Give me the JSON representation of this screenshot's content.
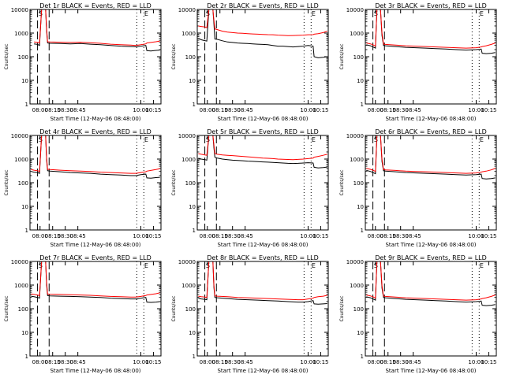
{
  "figure": {
    "background": "#ffffff",
    "axis_color": "#000000",
    "events_color": "#000000",
    "lld_color": "#ff0000"
  },
  "chart_data": [
    {
      "type": "line",
      "title": "Det 1r BLACK = Events, RED = LLD",
      "xlabel": "Start Time (12-May-06 08:48:00)",
      "ylabel": "Counts/sec",
      "xlim": [
        7.8,
        10.4
      ],
      "ylim": [
        1,
        10000
      ],
      "yscale": "log",
      "grid": false,
      "annotations": [
        "S",
        "E"
      ],
      "x_ticks": [
        "08:00",
        "08:15",
        "08:30",
        "08:45",
        "10:00",
        "10:15"
      ],
      "y_ticks": [
        "1",
        "10",
        "100",
        "1000",
        "10000"
      ],
      "x": [
        7.88,
        7.95,
        7.99,
        8.03,
        8.08,
        8.11,
        8.13,
        8.15,
        8.2,
        8.4,
        8.6,
        8.8,
        9.0,
        9.2,
        9.4,
        9.6,
        9.8,
        9.9,
        10.0,
        10.1,
        10.12,
        10.2,
        10.3,
        10.38
      ],
      "series": [
        {
          "name": "Events",
          "color": "#000000",
          "values": [
            350,
            330,
            300,
            10000,
            10000,
            10000,
            1200,
            380,
            370,
            360,
            350,
            360,
            340,
            320,
            300,
            280,
            270,
            265,
            280,
            300,
            180,
            175,
            185,
            190
          ]
        },
        {
          "name": "LLD",
          "color": "#ff0000",
          "values": [
            420,
            400,
            380,
            10000,
            10000,
            10000,
            1500,
            430,
            420,
            410,
            400,
            410,
            390,
            370,
            340,
            320,
            310,
            300,
            320,
            350,
            380,
            400,
            430,
            460
          ]
        }
      ]
    },
    {
      "type": "line",
      "title": "Det 2r BLACK = Events, RED = LLD",
      "xlabel": "Start Time (12-May-06 08:48:00)",
      "ylabel": "Counts/sec",
      "xlim": [
        7.8,
        10.4
      ],
      "ylim": [
        1,
        10000
      ],
      "yscale": "log",
      "grid": false,
      "annotations": [
        "S",
        "E"
      ],
      "x_ticks": [
        "08:00",
        "08:15",
        "08:30",
        "08:45",
        "10:00",
        "10:15"
      ],
      "y_ticks": [
        "1",
        "10",
        "100",
        "1000",
        "10000"
      ],
      "x": [
        7.82,
        7.88,
        7.95,
        7.99,
        8.03,
        8.08,
        8.11,
        8.13,
        8.15,
        8.2,
        8.3,
        8.4,
        8.5,
        8.6,
        8.7,
        8.8,
        8.9,
        9.0,
        9.1,
        9.2,
        9.3,
        9.4,
        9.5,
        9.6,
        9.7,
        9.8,
        9.9,
        10.0,
        10.1,
        10.12,
        10.2,
        10.3,
        10.38
      ],
      "series": [
        {
          "name": "Events",
          "color": "#000000",
          "values": [
            600,
            520,
            480,
            460,
            10000,
            10000,
            10000,
            2500,
            560,
            540,
            470,
            420,
            400,
            380,
            370,
            360,
            350,
            340,
            330,
            320,
            300,
            280,
            280,
            270,
            260,
            270,
            280,
            300,
            280,
            100,
            90,
            95,
            100
          ]
        },
        {
          "name": "LLD",
          "color": "#ff0000",
          "values": [
            2000,
            1900,
            1800,
            1700,
            10000,
            10000,
            10000,
            3500,
            1500,
            1400,
            1200,
            1100,
            1050,
            1000,
            980,
            950,
            920,
            900,
            880,
            860,
            850,
            820,
            800,
            780,
            790,
            800,
            820,
            850,
            860,
            900,
            950,
            1050,
            1200
          ]
        }
      ]
    },
    {
      "type": "line",
      "title": "Det 3r BLACK = Events, RED = LLD",
      "xlabel": "Start Time (12-May-06 08:48:00)",
      "ylabel": "Counts/sec",
      "xlim": [
        7.8,
        10.4
      ],
      "ylim": [
        1,
        10000
      ],
      "yscale": "log",
      "grid": false,
      "annotations": [
        "S",
        "E"
      ],
      "x_ticks": [
        "08:00",
        "08:15",
        "08:30",
        "08:45",
        "10:00",
        "10:15"
      ],
      "y_ticks": [
        "1",
        "10",
        "100",
        "1000",
        "10000"
      ],
      "x": [
        7.82,
        7.9,
        7.95,
        8.0,
        8.03,
        8.06,
        8.1,
        8.13,
        8.16,
        8.2,
        8.4,
        8.6,
        8.8,
        9.0,
        9.2,
        9.4,
        9.6,
        9.8,
        10.0,
        10.1,
        10.12,
        10.2,
        10.3,
        10.38
      ],
      "series": [
        {
          "name": "Events",
          "color": "#000000",
          "values": [
            320,
            290,
            260,
            230,
            10000,
            10000,
            10000,
            800,
            300,
            290,
            270,
            250,
            240,
            230,
            220,
            210,
            200,
            190,
            200,
            210,
            140,
            135,
            140,
            150
          ]
        },
        {
          "name": "LLD",
          "color": "#ff0000",
          "values": [
            380,
            350,
            320,
            280,
            10000,
            10000,
            10000,
            1000,
            340,
            330,
            310,
            290,
            280,
            270,
            260,
            250,
            240,
            230,
            240,
            260,
            270,
            290,
            330,
            380
          ]
        }
      ]
    },
    {
      "type": "line",
      "title": "Det 4r BLACK = Events, RED = LLD",
      "xlabel": "Start Time (12-May-06 08:48:00)",
      "ylabel": "Counts/sec",
      "xlim": [
        7.8,
        10.4
      ],
      "ylim": [
        1,
        10000
      ],
      "yscale": "log",
      "grid": false,
      "annotations": [
        "S",
        "E"
      ],
      "x_ticks": [
        "08:00",
        "08:15",
        "08:30",
        "08:45",
        "10:00",
        "10:15"
      ],
      "y_ticks": [
        "1",
        "10",
        "100",
        "1000",
        "10000"
      ],
      "x": [
        7.82,
        7.88,
        7.95,
        7.99,
        8.03,
        8.08,
        8.11,
        8.13,
        8.15,
        8.2,
        8.4,
        8.6,
        8.8,
        9.0,
        9.2,
        9.4,
        9.6,
        9.8,
        9.9,
        10.0,
        10.1,
        10.12,
        10.2,
        10.3,
        10.38
      ],
      "series": [
        {
          "name": "Events",
          "color": "#000000",
          "values": [
            300,
            280,
            270,
            250,
            10000,
            10000,
            10000,
            900,
            320,
            310,
            290,
            270,
            260,
            250,
            230,
            220,
            210,
            200,
            200,
            220,
            230,
            160,
            155,
            165,
            170
          ]
        },
        {
          "name": "LLD",
          "color": "#ff0000",
          "values": [
            360,
            340,
            320,
            300,
            10000,
            10000,
            10000,
            1100,
            370,
            360,
            340,
            320,
            310,
            300,
            280,
            270,
            260,
            250,
            250,
            270,
            290,
            310,
            330,
            360,
            390
          ]
        }
      ]
    },
    {
      "type": "line",
      "title": "Det 5r BLACK = Events, RED = LLD",
      "xlabel": "Start Time (12-May-06 08:48:00)",
      "ylabel": "Counts/sec",
      "xlim": [
        7.8,
        10.4
      ],
      "ylim": [
        1,
        10000
      ],
      "yscale": "log",
      "grid": false,
      "annotations": [
        "S",
        "E"
      ],
      "x_ticks": [
        "08:00",
        "08:15",
        "08:30",
        "08:45",
        "10:00",
        "10:15"
      ],
      "y_ticks": [
        "1",
        "10",
        "100",
        "1000",
        "10000"
      ],
      "x": [
        7.82,
        7.88,
        7.95,
        7.99,
        8.03,
        8.08,
        8.11,
        8.13,
        8.15,
        8.2,
        8.3,
        8.4,
        8.5,
        8.6,
        8.7,
        8.8,
        8.9,
        9.0,
        9.1,
        9.2,
        9.3,
        9.4,
        9.5,
        9.6,
        9.7,
        9.8,
        9.9,
        10.0,
        10.1,
        10.12,
        10.2,
        10.3,
        10.38
      ],
      "series": [
        {
          "name": "Events",
          "color": "#000000",
          "values": [
            1100,
            1000,
            950,
            900,
            10000,
            10000,
            10000,
            3000,
            1200,
            1100,
            1000,
            950,
            900,
            870,
            850,
            820,
            800,
            780,
            760,
            740,
            720,
            700,
            680,
            660,
            650,
            660,
            680,
            700,
            680,
            450,
            420,
            440,
            460
          ]
        },
        {
          "name": "LLD",
          "color": "#ff0000",
          "values": [
            1700,
            1600,
            1500,
            1450,
            10000,
            10000,
            10000,
            4000,
            1700,
            1600,
            1500,
            1450,
            1400,
            1350,
            1300,
            1250,
            1200,
            1150,
            1100,
            1080,
            1050,
            1000,
            980,
            960,
            950,
            970,
            1000,
            1050,
            1100,
            1200,
            1300,
            1450,
            1600
          ]
        }
      ]
    },
    {
      "type": "line",
      "title": "Det 6r BLACK = Events, RED = LLD",
      "xlabel": "Start Time (12-May-06 08:48:00)",
      "ylabel": "Counts/sec",
      "xlim": [
        7.8,
        10.4
      ],
      "ylim": [
        1,
        10000
      ],
      "yscale": "log",
      "grid": false,
      "annotations": [
        "S",
        "E"
      ],
      "x_ticks": [
        "08:00",
        "08:15",
        "08:30",
        "08:45",
        "10:00",
        "10:15"
      ],
      "y_ticks": [
        "1",
        "10",
        "100",
        "1000",
        "10000"
      ],
      "x": [
        7.82,
        7.9,
        7.95,
        8.0,
        8.03,
        8.06,
        8.1,
        8.13,
        8.16,
        8.2,
        8.4,
        8.6,
        8.8,
        9.0,
        9.2,
        9.4,
        9.6,
        9.8,
        10.0,
        10.1,
        10.12,
        10.2,
        10.3,
        10.38
      ],
      "series": [
        {
          "name": "Events",
          "color": "#000000",
          "values": [
            330,
            300,
            270,
            240,
            10000,
            10000,
            10000,
            800,
            320,
            310,
            290,
            270,
            260,
            250,
            240,
            230,
            220,
            210,
            220,
            230,
            150,
            145,
            150,
            160
          ]
        },
        {
          "name": "LLD",
          "color": "#ff0000",
          "values": [
            400,
            370,
            340,
            300,
            10000,
            10000,
            10000,
            1000,
            360,
            350,
            330,
            310,
            300,
            290,
            280,
            270,
            260,
            250,
            260,
            280,
            290,
            310,
            350,
            400
          ]
        }
      ]
    },
    {
      "type": "line",
      "title": "Det 7r BLACK = Events, RED = LLD",
      "xlabel": "Start Time (12-May-06 08:48:00)",
      "ylabel": "Counts/sec",
      "xlim": [
        7.8,
        10.4
      ],
      "ylim": [
        1,
        10000
      ],
      "yscale": "log",
      "grid": false,
      "annotations": [
        "S",
        "E"
      ],
      "x_ticks": [
        "08:00",
        "08:15",
        "08:30",
        "08:45",
        "10:00",
        "10:15"
      ],
      "y_ticks": [
        "1",
        "10",
        "100",
        "1000",
        "10000"
      ],
      "x": [
        7.82,
        7.88,
        7.95,
        7.99,
        8.03,
        8.08,
        8.11,
        8.13,
        8.15,
        8.2,
        8.4,
        8.6,
        8.8,
        9.0,
        9.2,
        9.4,
        9.6,
        9.8,
        9.9,
        10.0,
        10.1,
        10.12,
        10.2,
        10.3,
        10.38
      ],
      "series": [
        {
          "name": "Events",
          "color": "#000000",
          "values": [
            340,
            320,
            300,
            280,
            10000,
            10000,
            10000,
            1000,
            360,
            350,
            340,
            330,
            320,
            310,
            300,
            280,
            270,
            260,
            260,
            280,
            300,
            190,
            185,
            190,
            200
          ]
        },
        {
          "name": "LLD",
          "color": "#ff0000",
          "values": [
            420,
            400,
            380,
            350,
            10000,
            10000,
            10000,
            1300,
            420,
            410,
            400,
            390,
            380,
            370,
            350,
            330,
            320,
            310,
            310,
            330,
            360,
            380,
            400,
            430,
            470
          ]
        }
      ]
    },
    {
      "type": "line",
      "title": "Det 8r BLACK = Events, RED = LLD",
      "xlabel": "Start Time (12-May-06 08:48:00)",
      "ylabel": "Counts/sec",
      "xlim": [
        7.8,
        10.4
      ],
      "ylim": [
        1,
        10000
      ],
      "yscale": "log",
      "grid": false,
      "annotations": [
        "S",
        "E"
      ],
      "x_ticks": [
        "08:00",
        "08:15",
        "08:30",
        "08:45",
        "10:00",
        "10:15"
      ],
      "y_ticks": [
        "1",
        "10",
        "100",
        "1000",
        "10000"
      ],
      "x": [
        7.82,
        7.88,
        7.95,
        7.99,
        8.03,
        8.08,
        8.11,
        8.13,
        8.15,
        8.2,
        8.4,
        8.6,
        8.8,
        9.0,
        9.2,
        9.4,
        9.6,
        9.8,
        9.9,
        10.0,
        10.1,
        10.12,
        10.2,
        10.3,
        10.38
      ],
      "series": [
        {
          "name": "Events",
          "color": "#000000",
          "values": [
            280,
            260,
            250,
            240,
            10000,
            10000,
            10000,
            800,
            300,
            290,
            270,
            250,
            240,
            230,
            220,
            210,
            200,
            190,
            190,
            200,
            220,
            160,
            155,
            160,
            165
          ]
        },
        {
          "name": "LLD",
          "color": "#ff0000",
          "values": [
            340,
            320,
            310,
            300,
            10000,
            10000,
            10000,
            1000,
            350,
            340,
            320,
            300,
            290,
            280,
            270,
            260,
            250,
            240,
            240,
            260,
            280,
            300,
            320,
            340,
            370
          ]
        }
      ]
    },
    {
      "type": "line",
      "title": "Det 9r BLACK = Events, RED = LLD",
      "xlabel": "Start Time (12-May-06 08:48:00)",
      "ylabel": "Counts/sec",
      "xlim": [
        7.8,
        10.4
      ],
      "ylim": [
        1,
        10000
      ],
      "yscale": "log",
      "grid": false,
      "annotations": [
        "S",
        "E"
      ],
      "x_ticks": [
        "08:00",
        "08:15",
        "08:30",
        "08:45",
        "10:00",
        "10:15"
      ],
      "y_ticks": [
        "1",
        "10",
        "100",
        "1000",
        "10000"
      ],
      "x": [
        7.82,
        7.9,
        7.95,
        8.0,
        8.03,
        8.06,
        8.1,
        8.13,
        8.16,
        8.2,
        8.4,
        8.6,
        8.8,
        9.0,
        9.2,
        9.4,
        9.6,
        9.8,
        10.0,
        10.1,
        10.12,
        10.2,
        10.3,
        10.38
      ],
      "series": [
        {
          "name": "Events",
          "color": "#000000",
          "values": [
            320,
            290,
            260,
            230,
            10000,
            10000,
            10000,
            750,
            300,
            290,
            270,
            250,
            240,
            230,
            220,
            210,
            200,
            190,
            200,
            210,
            140,
            135,
            140,
            150
          ]
        },
        {
          "name": "LLD",
          "color": "#ff0000",
          "values": [
            380,
            350,
            320,
            280,
            10000,
            10000,
            10000,
            950,
            340,
            330,
            310,
            290,
            280,
            270,
            260,
            250,
            240,
            230,
            240,
            260,
            270,
            290,
            330,
            380
          ]
        }
      ]
    }
  ]
}
